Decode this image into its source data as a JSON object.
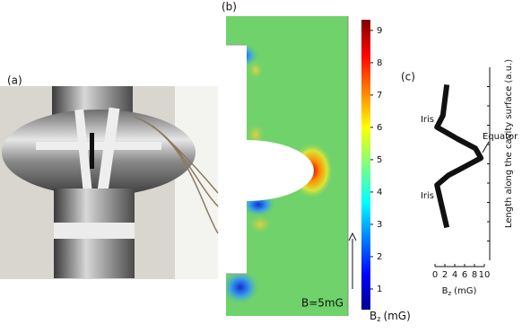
{
  "panels": [
    "(a)",
    "(b)",
    "(c)"
  ],
  "field": {
    "annotation": "B=5mG"
  },
  "colorbar": {
    "label": "B",
    "label_sub": "z",
    "label_unit": "(mG)",
    "lim": [
      0.36,
      9.33
    ],
    "ticks": [
      1,
      2,
      3,
      4,
      5,
      6,
      7,
      8,
      9
    ]
  },
  "chart_data": {
    "type": "line",
    "color": "#111111",
    "x": [
      2.4,
      1.3,
      0.4,
      2.7,
      6.4,
      9.3,
      8.2,
      4.5,
      0.4,
      1.6,
      2.4
    ],
    "values": [
      1.7,
      2.9,
      3.9,
      4.4,
      4.9,
      5.3,
      5.8,
      6.3,
      6.9,
      7.5,
      9.1
    ],
    "xlim": [
      0,
      10
    ],
    "xticks": [
      0,
      2,
      4,
      6,
      8,
      10
    ],
    "ylim": [
      0,
      10
    ],
    "yticks": [
      1,
      2,
      3,
      4,
      5,
      6,
      7,
      8,
      9
    ],
    "xlabel": "B",
    "xlabel_sub": "z",
    "xlabel_unit": "(mG)",
    "ylabel": "Length along the cavity surface (a.u.)",
    "annotations": [
      "Iris",
      "Equator",
      "Iris"
    ]
  }
}
